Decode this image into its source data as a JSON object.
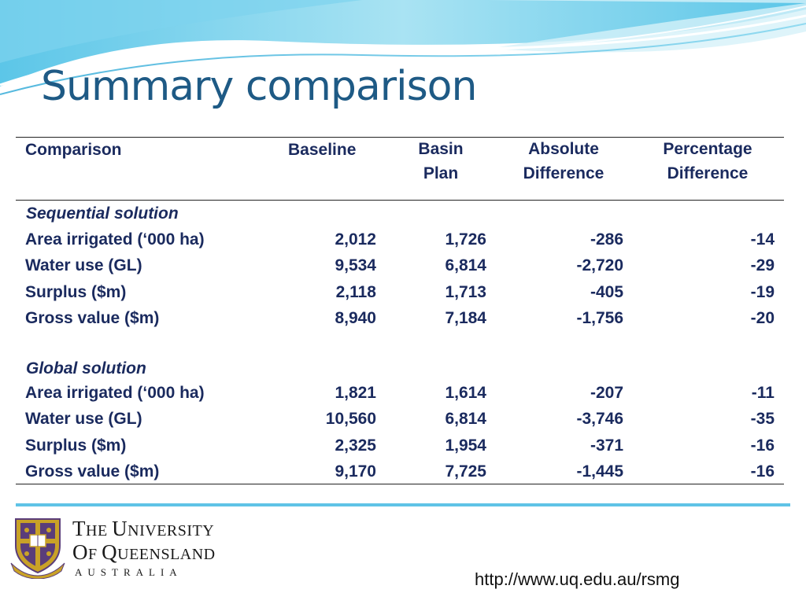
{
  "title": "Summary comparison",
  "table": {
    "headers": {
      "comparison": "Comparison",
      "baseline": "Baseline",
      "basin_l1": "Basin",
      "basin_l2": "Plan",
      "absdiff_l1": "Absolute",
      "absdiff_l2": "Difference",
      "pctdiff_l1": "Percentage",
      "pctdiff_l2": "Difference"
    },
    "sequential": {
      "label": "Sequential solution",
      "rows": [
        {
          "name": "Area irrigated (‘000 ha)",
          "baseline": "2,012",
          "basin": "1,726",
          "abs": "-286",
          "pct": "-14"
        },
        {
          "name": "Water use (GL)",
          "baseline": "9,534",
          "basin": "6,814",
          "abs": "-2,720",
          "pct": "-29"
        },
        {
          "name": "Surplus ($m)",
          "baseline": "2,118",
          "basin": "1,713",
          "abs": "-405",
          "pct": "-19"
        },
        {
          "name": "Gross value ($m)",
          "baseline": "8,940",
          "basin": "7,184",
          "abs": "-1,756",
          "pct": "-20"
        }
      ]
    },
    "global": {
      "label": "Global solution",
      "rows": [
        {
          "name": "Area irrigated (‘000 ha)",
          "baseline": "1,821",
          "basin": "1,614",
          "abs": "-207",
          "pct": "-11"
        },
        {
          "name": "Water use (GL)",
          "baseline": "10,560",
          "basin": "6,814",
          "abs": "-3,746",
          "pct": "-35"
        },
        {
          "name": "Surplus ($m)",
          "baseline": "2,325",
          "basin": "1,954",
          "abs": "-371",
          "pct": "-16"
        },
        {
          "name": "Gross value ($m)",
          "baseline": "9,170",
          "basin": "7,725",
          "abs": "-1,445",
          "pct": "-16"
        }
      ]
    }
  },
  "footer": {
    "uni_line1_a": "T",
    "uni_line1_b": "HE ",
    "uni_line1_c": "U",
    "uni_line1_d": "NIVERSITY",
    "uni_line2_a": "O",
    "uni_line2_b": "F ",
    "uni_line2_c": "Q",
    "uni_line2_d": "UEENSLAND",
    "country": "AUSTRALIA",
    "url": "http://www.uq.edu.au/rsmg",
    "logo_icon": "university-crest-icon",
    "accent_color": "#5fc3e6",
    "title_color": "#1e5a85",
    "text_color": "#1a2a5e"
  }
}
